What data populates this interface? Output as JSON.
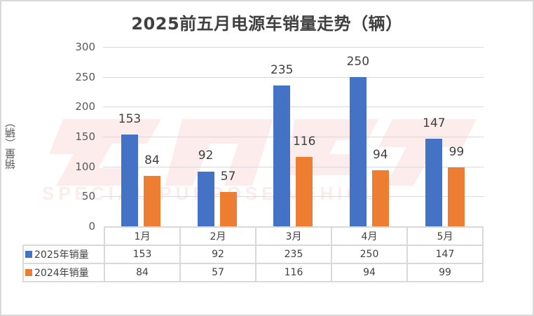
{
  "chart_data": {
    "type": "bar",
    "title": "2025前五月电源车销量走势（辆）",
    "xlabel": "",
    "ylabel": "销量（辆）",
    "ylim": [
      0,
      300
    ],
    "yticks": [
      0,
      50,
      100,
      150,
      200,
      250,
      300
    ],
    "grid": true,
    "legend_position": "data-table",
    "categories": [
      "1月",
      "2月",
      "3月",
      "4月",
      "5月"
    ],
    "series": [
      {
        "name": "2025年销量",
        "color": "#4472c4",
        "values": [
          153,
          92,
          235,
          250,
          147
        ]
      },
      {
        "name": "2024年销量",
        "color": "#ed7d31",
        "values": [
          84,
          57,
          116,
          94,
          99
        ]
      }
    ],
    "data_labels": true
  },
  "title": "2025前五月电源车销量走势（辆）",
  "ylabel": "销量（辆）",
  "yticks": [
    "0",
    "50",
    "100",
    "150",
    "200",
    "250",
    "300"
  ],
  "categories": [
    "1月",
    "2月",
    "3月",
    "4月",
    "5月"
  ],
  "series": [
    {
      "name": "2025年销量",
      "labels": [
        "153",
        "92",
        "235",
        "250",
        "147"
      ]
    },
    {
      "name": "2024年销量",
      "labels": [
        "84",
        "57",
        "116",
        "94",
        "99"
      ]
    }
  ],
  "watermark": "SPECIAL PURPOSE VEHICLE",
  "colors": {
    "series_2025": "#4472c4",
    "series_2024": "#ed7d31",
    "grid": "#d9d9d9",
    "border": "#d9d9d9"
  }
}
